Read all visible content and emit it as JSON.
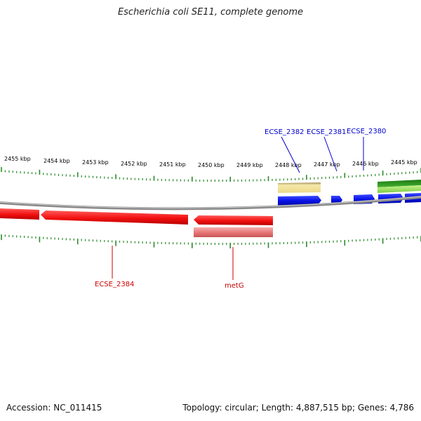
{
  "title": "Escherichia coli SE11, complete genome",
  "footer": {
    "accession": "Accession: NC_011415",
    "stats": "Topology: circular; Length: 4,887,515 bp; Genes: 4,786"
  },
  "scale": {
    "tick_labels": [
      "2455 kbp",
      "2454 kbp",
      "2453 kbp",
      "2452 kbp",
      "2451 kbp",
      "2450 kbp",
      "2449 kbp",
      "2448 kbp",
      "2447 kbp",
      "2446 kbp",
      "2445 kbp"
    ]
  },
  "genes": {
    "forward": [
      {
        "label": "ECSE_2382",
        "color": "#0000cc"
      },
      {
        "label": "ECSE_2381",
        "color": "#0000cc"
      },
      {
        "label": "ECSE_2380",
        "color": "#0000cc"
      }
    ],
    "reverse": [
      {
        "label": "ECSE_2384",
        "color": "#cc0000"
      },
      {
        "label": "metG",
        "color": "#cc0000"
      }
    ]
  },
  "colors": {
    "forward_gene": "#0a12e6",
    "reverse_gene": "#f21010",
    "reverse_feature_light": "#e87878",
    "forward_feature_tan": "#f0e19a",
    "forward_feature_green": "#2f9a22",
    "forward_feature_lightgreen": "#9be06a",
    "backbone": "#8a8a8a",
    "ticks": "#2a8a2a"
  }
}
